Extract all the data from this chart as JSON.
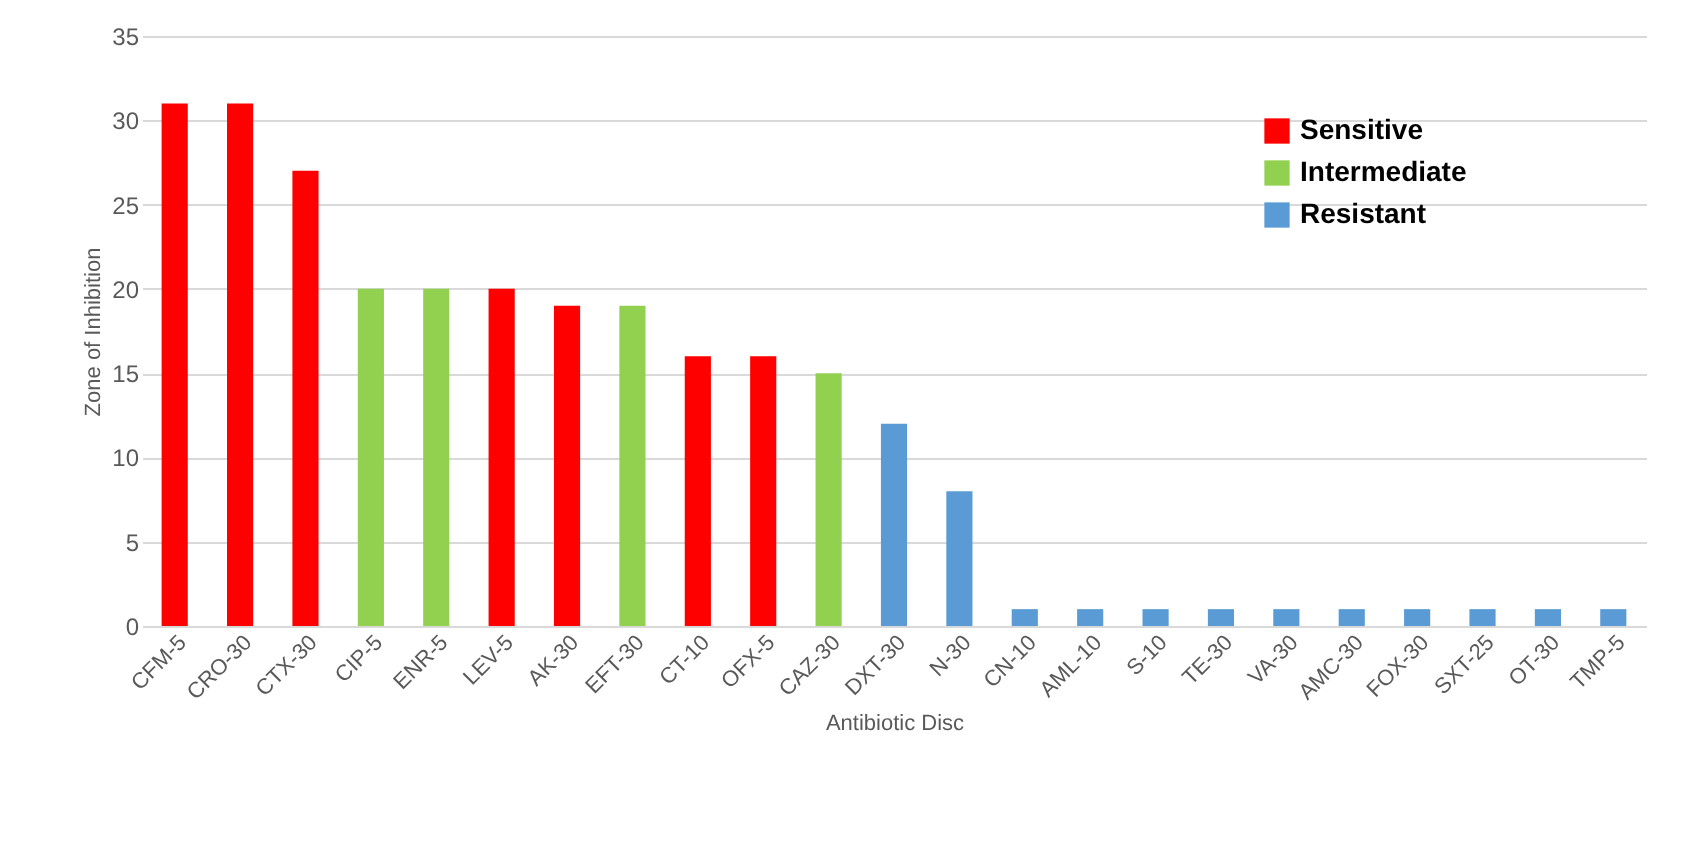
{
  "chart_data": {
    "type": "bar",
    "xlabel": "Antibiotic Disc",
    "ylabel": "Zone of Inhibition",
    "categories": [
      "CFM-5",
      "CRO-30",
      "CTX-30",
      "CIP-5",
      "ENR-5",
      "LEV-5",
      "AK-30",
      "EFT-30",
      "CT-10",
      "OFX-5",
      "CAZ-30",
      "DXT-30",
      "N-30",
      "CN-10",
      "AML-10",
      "S-10",
      "TE-30",
      "VA-30",
      "AMC-30",
      "FOX-30",
      "SXT-25",
      "OT-30",
      "TMP-5"
    ],
    "series": [
      {
        "name": "Sensitive",
        "color": "#ff0000",
        "values": [
          31,
          31,
          27,
          null,
          null,
          20,
          19,
          null,
          16,
          16,
          null,
          null,
          null,
          null,
          null,
          null,
          null,
          null,
          null,
          null,
          null,
          null,
          null
        ]
      },
      {
        "name": "Intermediate",
        "color": "#92d050",
        "values": [
          null,
          null,
          null,
          20,
          20,
          null,
          null,
          19,
          null,
          null,
          15,
          null,
          null,
          null,
          null,
          null,
          null,
          null,
          null,
          null,
          null,
          null,
          null
        ]
      },
      {
        "name": "Resistant",
        "color": "#5b9bd5",
        "values": [
          null,
          null,
          null,
          null,
          null,
          null,
          null,
          null,
          null,
          null,
          null,
          12,
          8,
          1,
          1,
          1,
          1,
          1,
          1,
          1,
          1,
          1,
          1
        ]
      }
    ],
    "stacked": true,
    "ylim": [
      0,
      35
    ],
    "yticks": [
      0,
      5,
      10,
      15,
      20,
      25,
      30,
      35
    ],
    "grid": "y",
    "legend": "top right"
  }
}
